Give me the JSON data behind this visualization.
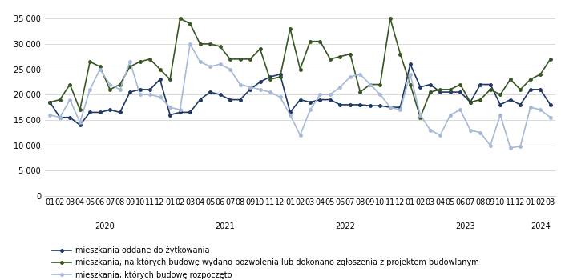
{
  "series1_name": "mieszkania oddane do żytkowania",
  "series1_color": "#1f3864",
  "series1_values": [
    18500,
    15500,
    15500,
    14000,
    16500,
    16500,
    17000,
    16500,
    20500,
    21000,
    21000,
    23000,
    16000,
    16500,
    16500,
    19000,
    20500,
    20000,
    19000,
    19000,
    21000,
    22500,
    23500,
    24000,
    16500,
    19000,
    18500,
    19000,
    19000,
    18000,
    18000,
    18000,
    17800,
    17800,
    17500,
    17500,
    26000,
    21500,
    22000,
    20500,
    20500,
    20500,
    18500,
    22000,
    22000,
    18000,
    19000,
    18000,
    21000,
    21000,
    18000
  ],
  "series2_name": "mieszkania, na których budowę wydano pozwolenia lub dokonano zgłoszenia z projektem budowlanym",
  "series2_color": "#375623",
  "series2_values": [
    18500,
    19000,
    22000,
    17000,
    26500,
    25500,
    21000,
    22000,
    25500,
    26500,
    27000,
    25000,
    23000,
    35000,
    34000,
    30000,
    30000,
    29500,
    27000,
    27000,
    27000,
    29000,
    23000,
    23500,
    33000,
    25000,
    30500,
    30500,
    27000,
    27500,
    28000,
    20500,
    22000,
    22000,
    35000,
    28000,
    22000,
    15500,
    20500,
    21000,
    21000,
    22000,
    18500,
    19000,
    21000,
    20000,
    23000,
    21000,
    23000,
    24000,
    27000
  ],
  "series3_name": "mieszkania, których budowę rozpoczęto",
  "series3_color": "#a6b9d7",
  "series3_values": [
    16000,
    15500,
    19000,
    14500,
    21000,
    25000,
    22000,
    21000,
    26500,
    20000,
    20000,
    19500,
    17500,
    17000,
    30000,
    26500,
    25500,
    26000,
    25000,
    22000,
    21500,
    21000,
    20500,
    19500,
    16000,
    12000,
    17000,
    20000,
    20000,
    21500,
    23500,
    24000,
    22000,
    20000,
    17500,
    17000,
    24000,
    16000,
    13000,
    12000,
    16000,
    17000,
    13000,
    12500,
    10000,
    16000,
    9500,
    9800,
    17500,
    17000,
    15500
  ],
  "year_months": [
    [
      "2020",
      12
    ],
    [
      "2021",
      12
    ],
    [
      "2022",
      12
    ],
    [
      "2023",
      12
    ],
    [
      "2024",
      3
    ]
  ],
  "ylim": [
    0,
    37000
  ],
  "yticks": [
    0,
    5000,
    10000,
    15000,
    20000,
    25000,
    30000,
    35000
  ],
  "grid_color": "#d9d9d9",
  "background_color": "#ffffff",
  "tick_fontsize": 7,
  "legend_fontsize": 7,
  "line_width": 1.2,
  "marker_size": 2.5
}
